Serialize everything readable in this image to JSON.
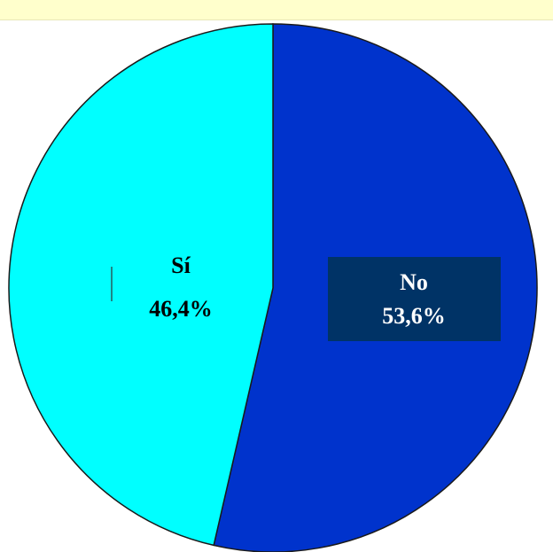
{
  "chart_data": {
    "type": "pie",
    "categories": [
      "No",
      "Sí"
    ],
    "values": [
      53.6,
      46.4
    ],
    "value_labels": [
      "53,6%",
      "46,4%"
    ],
    "colors": [
      "#0033cc",
      "#00ffff"
    ],
    "label_box_color": "#003366",
    "label_colors": [
      "#ffffff",
      "#000000"
    ],
    "start": "12 o'clock",
    "direction": "clockwise"
  }
}
